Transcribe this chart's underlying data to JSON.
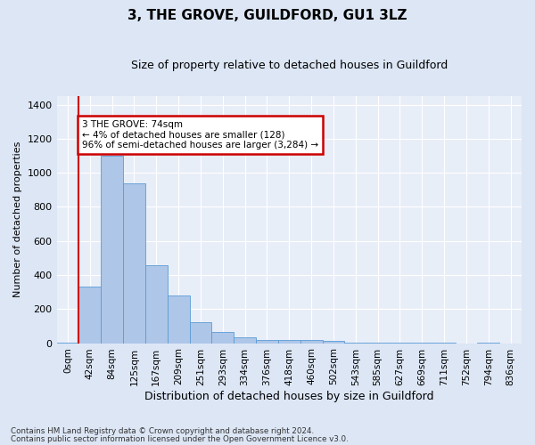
{
  "title": "3, THE GROVE, GUILDFORD, GU1 3LZ",
  "subtitle": "Size of property relative to detached houses in Guildford",
  "xlabel": "Distribution of detached houses by size in Guildford",
  "ylabel": "Number of detached properties",
  "bar_labels": [
    "0sqm",
    "42sqm",
    "84sqm",
    "125sqm",
    "167sqm",
    "209sqm",
    "251sqm",
    "293sqm",
    "334sqm",
    "376sqm",
    "418sqm",
    "460sqm",
    "502sqm",
    "543sqm",
    "585sqm",
    "627sqm",
    "669sqm",
    "711sqm",
    "752sqm",
    "794sqm",
    "836sqm"
  ],
  "bar_values": [
    5,
    330,
    1100,
    940,
    460,
    280,
    125,
    65,
    35,
    20,
    20,
    20,
    15,
    5,
    5,
    5,
    5,
    5,
    0,
    5,
    0
  ],
  "bar_color": "#aec6e8",
  "bar_edge_color": "#5b9bd5",
  "property_line_x": 1.0,
  "ylim": [
    0,
    1450
  ],
  "yticks": [
    0,
    200,
    400,
    600,
    800,
    1000,
    1200,
    1400
  ],
  "annotation_text": "3 THE GROVE: 74sqm\n← 4% of detached houses are smaller (128)\n96% of semi-detached houses are larger (3,284) →",
  "annotation_box_color": "#ffffff",
  "annotation_box_edge": "#cc0000",
  "red_line_color": "#cc0000",
  "footnote1": "Contains HM Land Registry data © Crown copyright and database right 2024.",
  "footnote2": "Contains public sector information licensed under the Open Government Licence v3.0.",
  "bg_color": "#dce6f5",
  "plot_bg_color": "#e8eef8",
  "grid_color": "#ffffff",
  "title_fontsize": 11,
  "subtitle_fontsize": 9,
  "ylabel_fontsize": 8,
  "xlabel_fontsize": 9,
  "tick_fontsize": 8,
  "xtick_fontsize": 7.5
}
